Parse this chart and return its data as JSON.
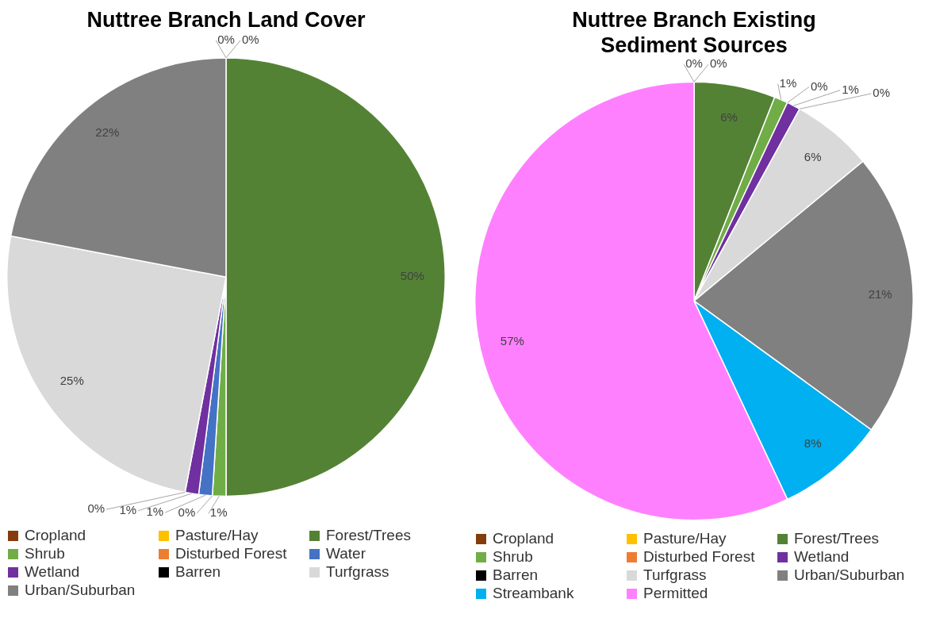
{
  "chart_data": [
    {
      "type": "pie",
      "title": "Nuttree Branch Land Cover",
      "categories": [
        "Cropland",
        "Pasture/Hay",
        "Forest/Trees",
        "Shrub",
        "Disturbed Forest",
        "Water",
        "Wetland",
        "Barren",
        "Turfgrass",
        "Urban/Suburban"
      ],
      "values": [
        0,
        0,
        50,
        1,
        0,
        1,
        1,
        0,
        25,
        22
      ],
      "value_labels": [
        "0%",
        "0%",
        "50%",
        "1%",
        "0%",
        "1%",
        "1%",
        "0%",
        "25%",
        "22%"
      ],
      "colors": [
        "#843c0c",
        "#ffc000",
        "#548235",
        "#70ad47",
        "#ed7d31",
        "#4472c4",
        "#7030a0",
        "#000000",
        "#d9d9d9",
        "#808080"
      ],
      "legend": "bottom"
    },
    {
      "type": "pie",
      "title": "Nuttree Branch Existing Sediment Sources",
      "categories": [
        "Cropland",
        "Pasture/Hay",
        "Forest/Trees",
        "Shrub",
        "Disturbed Forest",
        "Wetland",
        "Barren",
        "Turfgrass",
        "Urban/Suburban",
        "Streambank",
        "Permitted"
      ],
      "values": [
        0,
        0,
        6,
        1,
        0,
        1,
        0,
        6,
        21,
        8,
        57
      ],
      "value_labels": [
        "0%",
        "0%",
        "6%",
        "1%",
        "0%",
        "1%",
        "0%",
        "6%",
        "21%",
        "8%",
        "57%"
      ],
      "colors": [
        "#843c0c",
        "#ffc000",
        "#548235",
        "#70ad47",
        "#ed7d31",
        "#7030a0",
        "#000000",
        "#d9d9d9",
        "#808080",
        "#00b0f0",
        "#ff80ff"
      ],
      "legend": "bottom"
    }
  ]
}
